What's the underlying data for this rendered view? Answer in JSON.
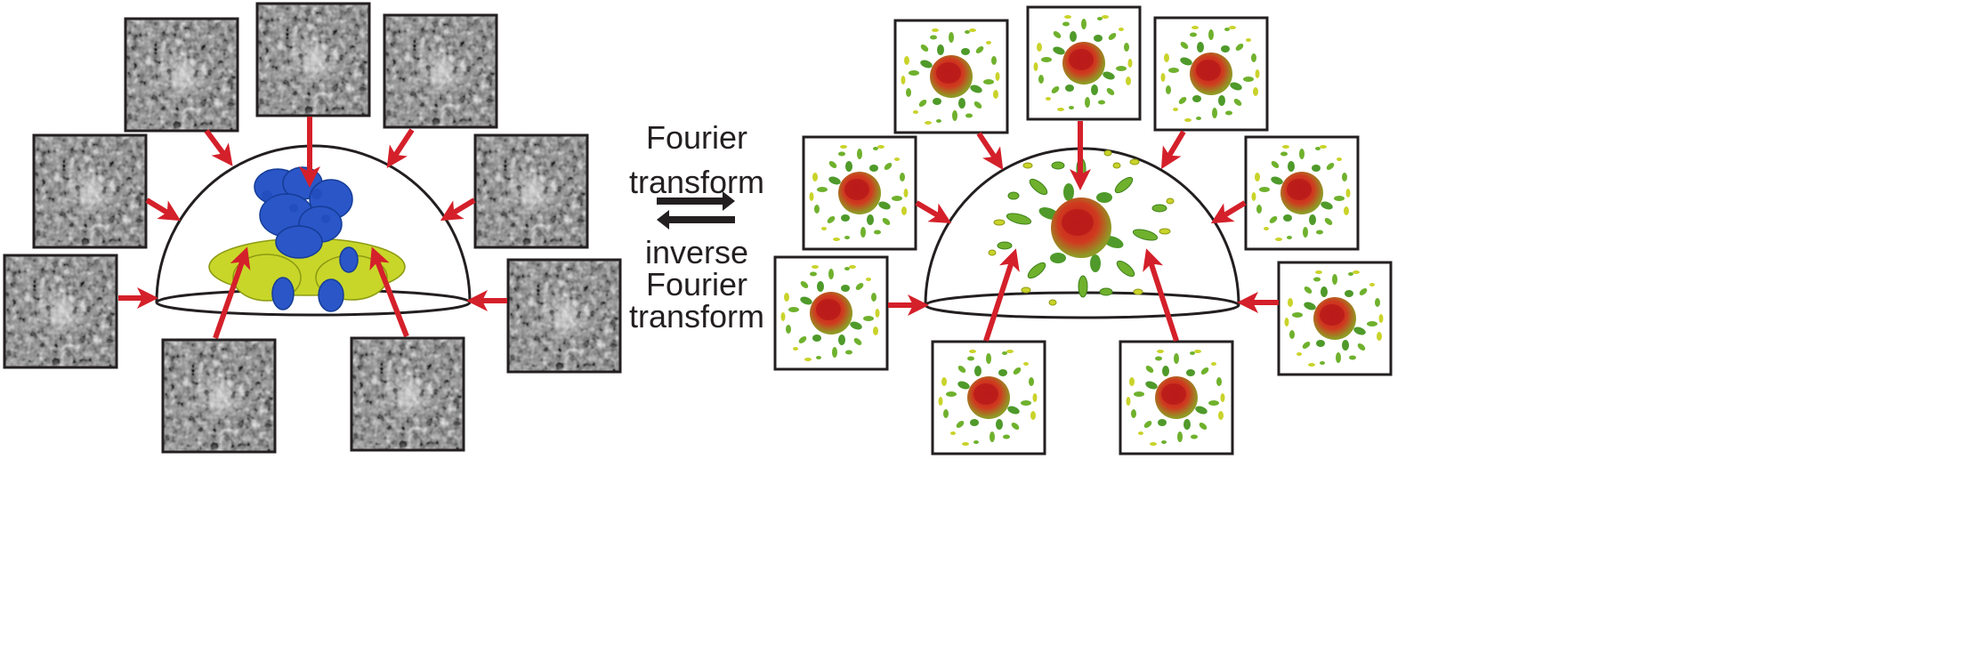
{
  "forward_label": {
    "line1": "Fourier",
    "line2": "transform"
  },
  "inverse_label": {
    "line1": "inverse",
    "line2": "Fourier",
    "line3": "transform"
  },
  "colors": {
    "arrow": "#d4202a",
    "frame": "#231f20",
    "protein_blue": "#1f49b8",
    "protein_yellow": "#c8d62a",
    "fourier_red": "#c4241e",
    "fourier_green": "#63a62a"
  },
  "panels": {
    "real_space": {
      "micrograph_count": 9,
      "structure": "protein-density-map"
    },
    "fourier_space": {
      "slice_count": 9,
      "structure": "fourier-density-map"
    }
  }
}
